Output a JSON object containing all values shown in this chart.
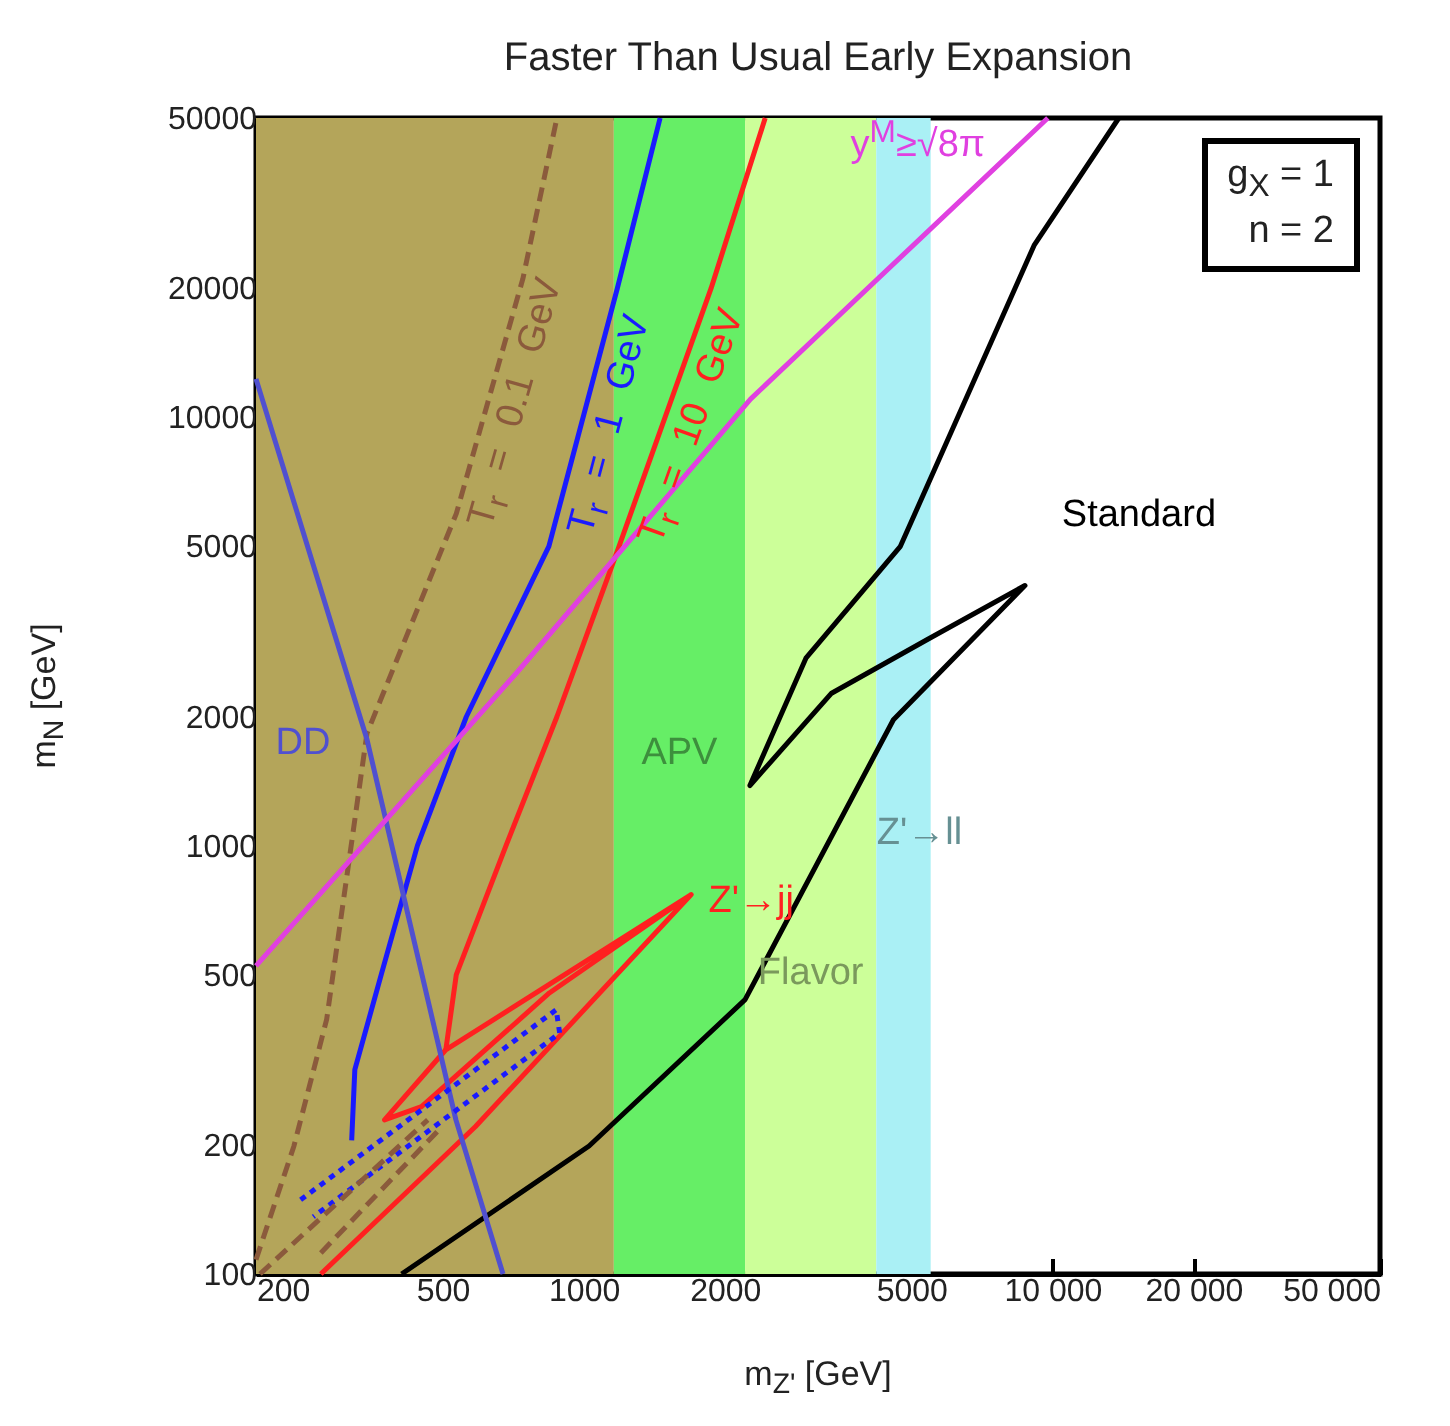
{
  "chart_data": {
    "type": "line",
    "title": "Faster Than Usual Early Expansion",
    "xlabel": "m$_{Z'}$ [GeV]",
    "ylabel": "m$_{N}$ [GeV]",
    "log": "xy",
    "xlim": [
      200,
      50000
    ],
    "ylim": [
      100,
      50000
    ],
    "xticks": [
      200,
      500,
      1000,
      2000,
      5000,
      {
        "value": 10000,
        "label": "10 000"
      },
      {
        "value": 20000,
        "label": "20 000"
      },
      {
        "value": 50000,
        "label": "50 000"
      }
    ],
    "yticks": [
      100,
      200,
      500,
      1000,
      2000,
      5000,
      10000,
      20000,
      50000
    ],
    "bands": [
      {
        "axis": "x",
        "from": 200,
        "to": 1160,
        "color": "#b4a55a"
      },
      {
        "axis": "x",
        "from": 1160,
        "to": 2210,
        "color": "#66ee66",
        "label": "APV"
      },
      {
        "axis": "x",
        "from": 2210,
        "to": 4210,
        "color": "#ccff99",
        "label": "Flavor"
      },
      {
        "axis": "x",
        "from": 4210,
        "to": 5500,
        "color": "#aaf0f5",
        "label": "Z'→ll"
      }
    ],
    "series": [
      {
        "name": "T$_{r}$ = 0.1 GeV",
        "color": "#8b5a3c",
        "line_style": "dashed",
        "x": [
          200,
          241,
          283,
          345,
          535,
          742,
          877
        ],
        "values": [
          108,
          199,
          393,
          1830,
          5960,
          21080,
          50000
        ]
      },
      {
        "name": "T$_{r}$ = 1 GeV",
        "color": "#1a1aff",
        "line_style": "solid",
        "x": [
          320,
          325,
          370,
          442,
          562,
          843,
          1180,
          1456
        ],
        "values": [
          205,
          300,
          500,
          1000,
          2000,
          5000,
          20000,
          50000
        ]
      },
      {
        "name": "T$_{r}$ = 10 GeV",
        "color": "#ff2020",
        "line_style": "solid",
        "x": [
          508,
          535,
          683,
          877,
          1190,
          1870,
          2440
        ],
        "values": [
          333,
          500,
          1000,
          2000,
          5000,
          20000,
          50000
        ]
      },
      {
        "name": "Z'→jj",
        "color": "#ff2020",
        "line_style": "solid",
        "x": [
          275,
          588,
          1696,
          845,
          451,
          376,
          507,
          1696
        ],
        "values": [
          100,
          221,
          769,
          453,
          246,
          229,
          333,
          769
        ]
      },
      {
        "name": "Standard",
        "color": "#000000",
        "line_style": "solid",
        "x": [
          409,
          1027,
          2210,
          4580,
          8740,
          5400,
          3380,
          2263,
          2980,
          4740,
          9140,
          13860
        ],
        "values": [
          100,
          199,
          437,
          1968,
          4050,
          3025,
          2270,
          1382,
          2740,
          5000,
          25200,
          50000
        ]
      },
      {
        "name": "DD",
        "color": "#5050d0",
        "line_style": "solid",
        "x": [
          200,
          345,
          534,
          673
        ],
        "values": [
          12300,
          1770,
          229,
          100
        ]
      },
      {
        "name": "y$^{M}$≥√8π",
        "color": "#e040e0",
        "line_style": "solid",
        "x": [
          200,
          719,
          2270,
          9780
        ],
        "values": [
          524,
          2530,
          11030,
          50000
        ]
      },
      {
        "color": "#1a1aff",
        "line_style": "dotted",
        "x": [
          249,
          874,
          889,
          265
        ],
        "values": [
          149,
          414,
          365,
          136
        ]
      },
      {
        "color": "#8b5a3c",
        "line_style": "dashed",
        "x": [
          275,
          499
        ],
        "values": [
          112,
          221
        ]
      },
      {
        "color": "#8b5a3c",
        "line_style": "dashed",
        "x": [
          204,
          465
        ],
        "values": [
          100,
          229
        ]
      }
    ],
    "annotations": [
      "g$_{X}$ = 1",
      "n = 2"
    ]
  }
}
